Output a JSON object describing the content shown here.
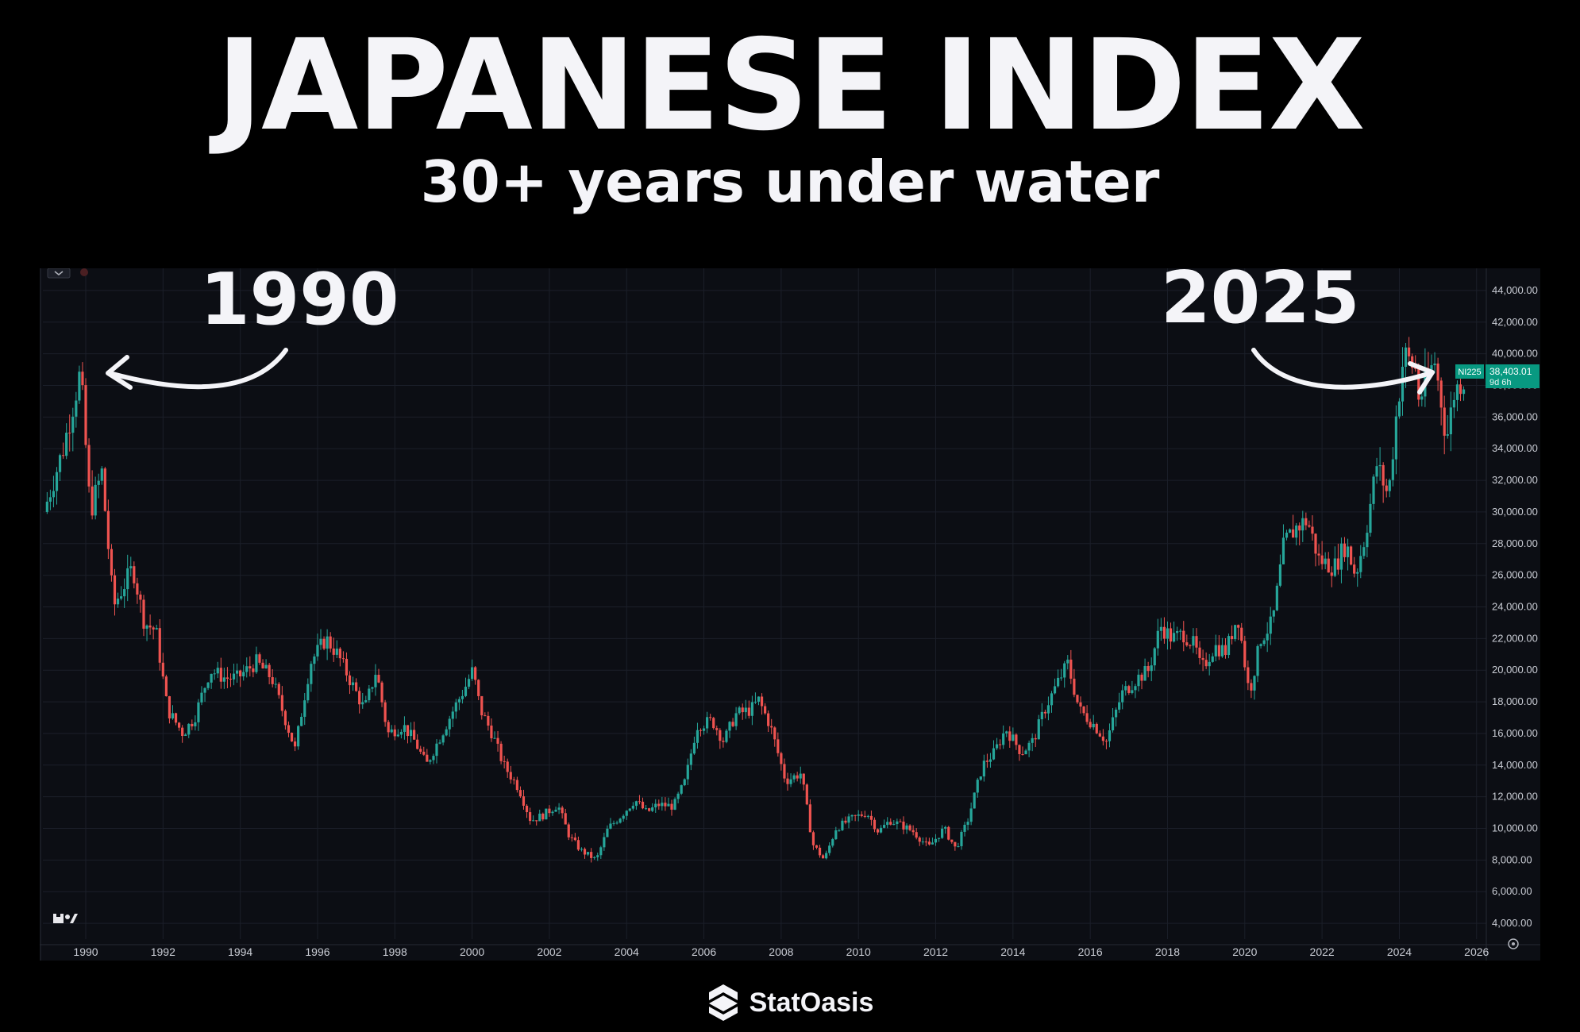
{
  "header": {
    "title": "JAPANESE INDEX",
    "subtitle": "30+ years under water"
  },
  "annotations": {
    "left_label": "1990",
    "right_label": "2025"
  },
  "price_tag": {
    "symbol": "NI225",
    "price": "38,403.01",
    "countdown": "9d 6h",
    "color": "#089981"
  },
  "brand": {
    "name": "StatOasis",
    "logo_icon": "statoasis-logo-icon"
  },
  "watermark_icon": "tradingview-logo-icon",
  "settings_icon": "gear-icon",
  "colors": {
    "up": "#26a69a",
    "down": "#ef5350",
    "background": "#0c0e14",
    "grid": "#1b1f29"
  },
  "chart_data": {
    "type": "candlestick",
    "title": "JAPANESE INDEX",
    "subtitle": "30+ years under water",
    "symbol": "NI225",
    "interval": "monthly",
    "last_price": 38403.01,
    "x_range": [
      1989,
      2026.5
    ],
    "ylim": [
      3000,
      45000
    ],
    "x_ticks": [
      "1990",
      "1992",
      "1994",
      "1996",
      "1998",
      "2000",
      "2002",
      "2004",
      "2006",
      "2008",
      "2010",
      "2012",
      "2014",
      "2016",
      "2018",
      "2020",
      "2022",
      "2024",
      "2026"
    ],
    "y_ticks": [
      "4,000.00",
      "6,000.00",
      "8,000.00",
      "10,000.00",
      "12,000.00",
      "14,000.00",
      "16,000.00",
      "18,000.00",
      "20,000.00",
      "22,000.00",
      "24,000.00",
      "26,000.00",
      "28,000.00",
      "30,000.00",
      "32,000.00",
      "34,000.00",
      "36,000.00",
      "38,000.00",
      "40,000.00",
      "42,000.00",
      "44,000.00"
    ],
    "y_values": [
      4000,
      6000,
      8000,
      10000,
      12000,
      14000,
      16000,
      18000,
      20000,
      22000,
      24000,
      26000,
      28000,
      30000,
      32000,
      34000,
      36000,
      38000,
      40000,
      42000,
      44000
    ],
    "series": [
      {
        "name": "NI225 close (approx.)",
        "x": [
          1989.0,
          1989.5,
          1989.95,
          1990.2,
          1990.5,
          1990.8,
          1991.0,
          1991.3,
          1991.6,
          1991.9,
          1992.2,
          1992.6,
          1992.9,
          1993.3,
          1993.7,
          1994.0,
          1994.5,
          1994.9,
          1995.3,
          1995.5,
          1995.9,
          1996.3,
          1996.6,
          1996.9,
          1997.3,
          1997.6,
          1997.9,
          1998.3,
          1998.6,
          1998.9,
          1999.3,
          1999.6,
          1999.9,
          2000.1,
          2000.3,
          2000.6,
          2000.9,
          2001.3,
          2001.6,
          2001.9,
          2002.3,
          2002.6,
          2002.9,
          2003.3,
          2003.6,
          2003.9,
          2004.3,
          2004.6,
          2004.9,
          2005.3,
          2005.6,
          2005.9,
          2006.3,
          2006.6,
          2006.9,
          2007.3,
          2007.5,
          2007.8,
          2008.2,
          2008.6,
          2008.9,
          2009.2,
          2009.5,
          2009.9,
          2010.3,
          2010.6,
          2010.9,
          2011.2,
          2011.5,
          2011.9,
          2012.3,
          2012.6,
          2012.9,
          2013.3,
          2013.6,
          2013.9,
          2014.3,
          2014.6,
          2014.9,
          2015.3,
          2015.5,
          2015.8,
          2016.2,
          2016.5,
          2016.9,
          2017.3,
          2017.6,
          2017.9,
          2018.2,
          2018.5,
          2018.8,
          2018.95,
          2019.3,
          2019.6,
          2019.9,
          2020.2,
          2020.5,
          2020.8,
          2021.1,
          2021.4,
          2021.7,
          2022.0,
          2022.4,
          2022.7,
          2022.95,
          2023.2,
          2023.5,
          2023.8,
          2024.0,
          2024.2,
          2024.5,
          2024.6,
          2024.8,
          2025.0,
          2025.2,
          2025.3,
          2025.5,
          2025.7
        ],
        "values": [
          30000,
          34000,
          38900,
          30000,
          32500,
          24000,
          25000,
          26500,
          23000,
          22500,
          17500,
          16000,
          17000,
          20000,
          19500,
          19500,
          20500,
          19500,
          16500,
          15000,
          20500,
          22000,
          21000,
          19500,
          17500,
          20000,
          16000,
          16500,
          15500,
          14000,
          16000,
          17500,
          18900,
          20000,
          17500,
          16000,
          14000,
          12500,
          10500,
          10800,
          11500,
          9500,
          8600,
          8000,
          10000,
          10700,
          11800,
          11000,
          11500,
          11400,
          13000,
          16500,
          16800,
          15500,
          17200,
          17500,
          18100,
          16500,
          13000,
          13500,
          9000,
          8000,
          10000,
          10600,
          11000,
          9800,
          10500,
          10200,
          9800,
          8800,
          10000,
          8700,
          10400,
          14000,
          14800,
          16300,
          14800,
          15500,
          17500,
          19500,
          20400,
          17500,
          16500,
          15500,
          18500,
          19500,
          20000,
          22800,
          22000,
          22300,
          21500,
          20000,
          21500,
          21200,
          23500,
          18500,
          22000,
          23000,
          28000,
          29000,
          29500,
          27000,
          26500,
          28000,
          26000,
          28500,
          33000,
          31000,
          36000,
          40000,
          39000,
          37000,
          38500,
          39500,
          36500,
          34500,
          37500,
          38400
        ]
      }
    ]
  }
}
